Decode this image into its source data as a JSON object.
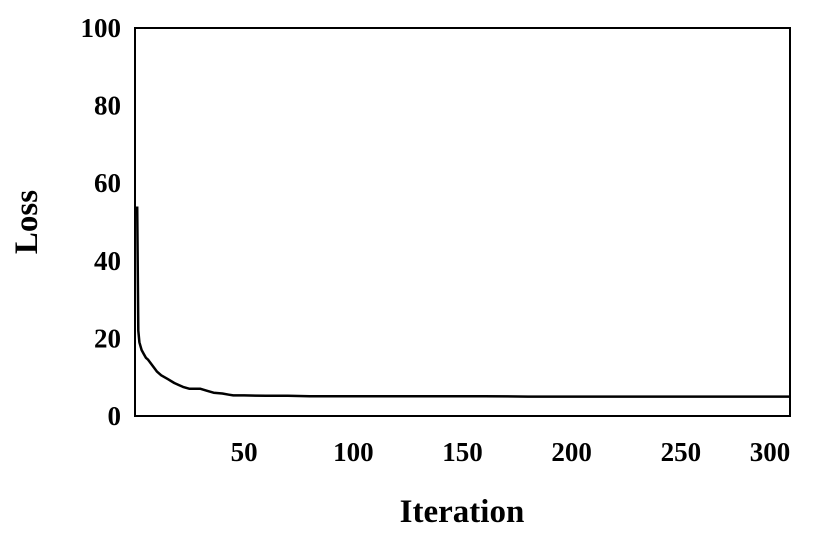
{
  "chart_data": {
    "type": "line",
    "title": "",
    "xlabel": "Iteration",
    "ylabel": "Loss",
    "xlim": [
      0,
      300
    ],
    "ylim": [
      0,
      100
    ],
    "x_ticks": [
      50,
      100,
      150,
      200,
      250,
      300
    ],
    "y_ticks": [
      0,
      20,
      40,
      60,
      80,
      100
    ],
    "grid": false,
    "legend": "none",
    "line_color": "#000000",
    "series": [
      {
        "x": [
          1,
          1.5,
          2,
          2.5,
          3,
          4,
          5,
          6,
          8,
          10,
          12,
          15,
          18,
          20,
          22,
          25,
          28,
          30,
          33,
          36,
          40,
          43,
          45,
          50,
          60,
          70,
          80,
          90,
          100,
          120,
          140,
          160,
          180,
          200,
          220,
          240,
          260,
          280,
          300
        ],
        "y": [
          54,
          22,
          19,
          18,
          17,
          16,
          15,
          14.5,
          13,
          11.5,
          10.5,
          9.5,
          8.5,
          8,
          7.5,
          7,
          7,
          7,
          6.5,
          6,
          5.8,
          5.5,
          5.3,
          5.3,
          5.2,
          5.2,
          5.1,
          5.1,
          5.1,
          5.1,
          5.1,
          5.1,
          5,
          5,
          5,
          5,
          5,
          5,
          5
        ]
      }
    ]
  }
}
